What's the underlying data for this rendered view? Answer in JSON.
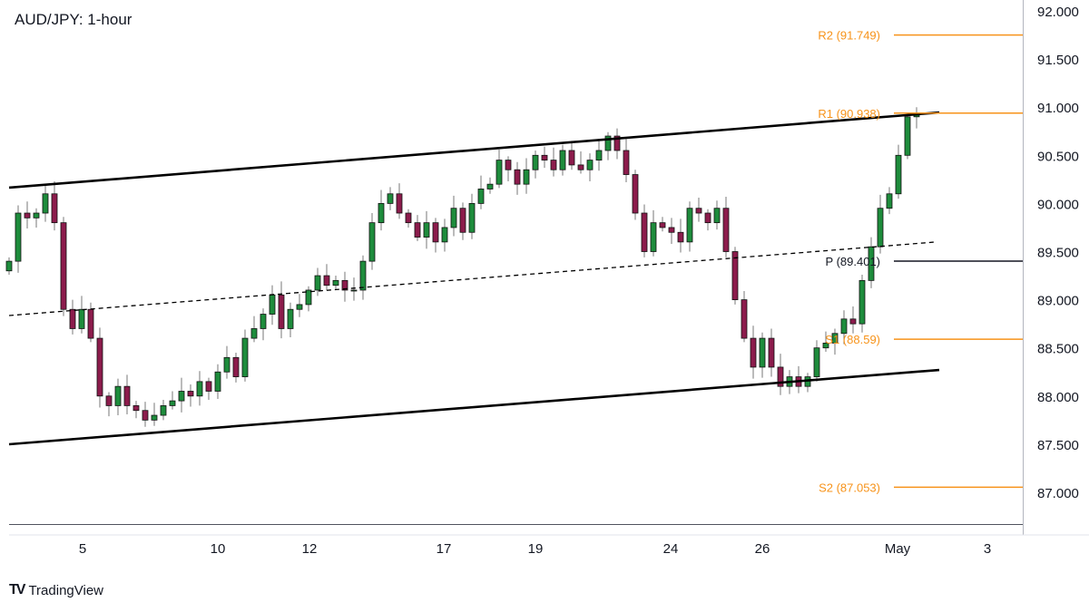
{
  "chart_data": {
    "type": "candlestick",
    "title": "AUD/JPY: 1-hour",
    "ylim": [
      86.7,
      92.0
    ],
    "y_ticks": [
      "92.000",
      "91.500",
      "91.000",
      "90.500",
      "90.000",
      "89.500",
      "89.000",
      "88.500",
      "88.000",
      "87.500",
      "87.000"
    ],
    "x_ticks": [
      {
        "label": "5",
        "index": 8.1
      },
      {
        "label": "10",
        "index": 23
      },
      {
        "label": "12",
        "index": 33.1
      },
      {
        "label": "17",
        "index": 47.9
      },
      {
        "label": "19",
        "index": 58
      },
      {
        "label": "24",
        "index": 72.9
      },
      {
        "label": "26",
        "index": 83
      },
      {
        "label": "May",
        "index": 97.9
      },
      {
        "label": "3",
        "index": 107.8
      }
    ],
    "x_range": [
      0,
      111.7
    ],
    "closes": [
      89.4,
      89.9,
      89.85,
      89.9,
      90.1,
      89.8,
      88.9,
      88.7,
      88.9,
      88.6,
      88.0,
      87.9,
      88.1,
      87.9,
      87.85,
      87.75,
      87.8,
      87.9,
      87.95,
      88.05,
      88.0,
      88.15,
      88.05,
      88.25,
      88.4,
      88.2,
      88.6,
      88.7,
      88.85,
      89.05,
      88.7,
      88.9,
      88.95,
      89.1,
      89.25,
      89.15,
      89.2,
      89.1,
      89.1,
      89.4,
      89.8,
      90.0,
      90.1,
      89.9,
      89.8,
      89.65,
      89.8,
      89.6,
      89.75,
      89.95,
      89.7,
      90.0,
      90.15,
      90.2,
      90.45,
      90.35,
      90.2,
      90.35,
      90.5,
      90.45,
      90.35,
      90.55,
      90.4,
      90.35,
      90.45,
      90.55,
      90.7,
      90.55,
      90.3,
      89.9,
      89.5,
      89.8,
      89.75,
      89.7,
      89.6,
      89.95,
      89.9,
      89.8,
      89.95,
      89.5,
      89.0,
      88.6,
      88.3,
      88.6,
      88.3,
      88.1,
      88.2,
      88.1,
      88.2,
      88.5,
      88.55,
      88.65,
      88.8,
      88.75,
      89.2,
      89.55,
      89.95,
      90.1,
      90.5,
      90.9,
      90.92
    ],
    "trendlines": [
      {
        "name": "channel-upper",
        "style": "solid",
        "points": [
          [
            0,
            90.164
          ],
          [
            102.5,
            90.945
          ]
        ]
      },
      {
        "name": "channel-middle",
        "style": "dashed",
        "points": [
          [
            0,
            88.836
          ],
          [
            102,
            89.599
          ]
        ]
      },
      {
        "name": "channel-lower",
        "style": "solid",
        "points": [
          [
            0,
            87.499
          ],
          [
            102.5,
            88.271
          ]
        ]
      }
    ],
    "levels": [
      {
        "label": "R2 (91.749)",
        "value": 91.749,
        "color": "#f7931a"
      },
      {
        "label": "R1 (90.938)",
        "value": 90.938,
        "color": "#f7931a"
      },
      {
        "label": "P (89.401)",
        "value": 89.401,
        "color": "#131722"
      },
      {
        "label": "S1 (88.59)",
        "value": 88.59,
        "color": "#f7931a"
      },
      {
        "label": "S2 (87.053)",
        "value": 87.053,
        "color": "#f7931a"
      }
    ],
    "colors": {
      "up": "#1e8c3c",
      "down": "#8c1c4c",
      "wick": "#777777"
    }
  },
  "brand": "TradingView"
}
